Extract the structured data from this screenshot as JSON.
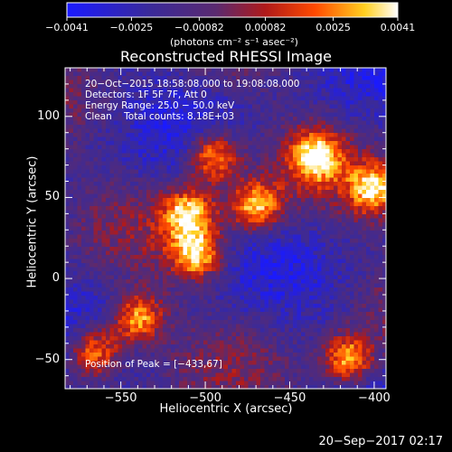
{
  "chart_data": {
    "type": "heatmap",
    "title": "Reconstructed RHESSI Image",
    "xlabel": "Heliocentric X (arcsec)",
    "ylabel": "Heliocentric Y (arcsec)",
    "xlim": [
      -583,
      -393
    ],
    "ylim": [
      -68,
      130
    ],
    "xticks": [
      -550,
      -500,
      -450,
      -400
    ],
    "xtick_labels": [
      "−550",
      "−500",
      "−450",
      "−400"
    ],
    "yticks": [
      100,
      50,
      0,
      -50
    ],
    "ytick_labels": [
      "100",
      "50",
      "0",
      "−50"
    ],
    "colorbar": {
      "min": -0.0041,
      "max": 0.0041,
      "tick_labels": [
        "−0.0041",
        "−0.0025",
        "−0.00082",
        "0.00082",
        "0.0025",
        "0.0041"
      ],
      "units": "(photons cm⁻² s⁻¹ asec⁻²)"
    },
    "annotations": {
      "time": "20−Oct−2015 18:58:08.000 to 19:08:08.000",
      "detectors": "Detectors: 1F 5F 7F, Att 0",
      "energy": "Energy Range: 25.0 − 50.0 keV",
      "clean": "Clean    Total counts: 8.18E+03",
      "peak": "Position of Peak = [−433,67]"
    },
    "bright_sources": [
      {
        "x": -510,
        "y": 40
      },
      {
        "x": -470,
        "y": 45
      },
      {
        "x": -495,
        "y": 75
      },
      {
        "x": -435,
        "y": 75
      },
      {
        "x": -505,
        "y": 15
      },
      {
        "x": -540,
        "y": -25
      },
      {
        "x": -565,
        "y": -45
      },
      {
        "x": -400,
        "y": 55
      },
      {
        "x": -415,
        "y": -50
      }
    ]
  },
  "timestamp": "20−Sep−2017 02:17"
}
